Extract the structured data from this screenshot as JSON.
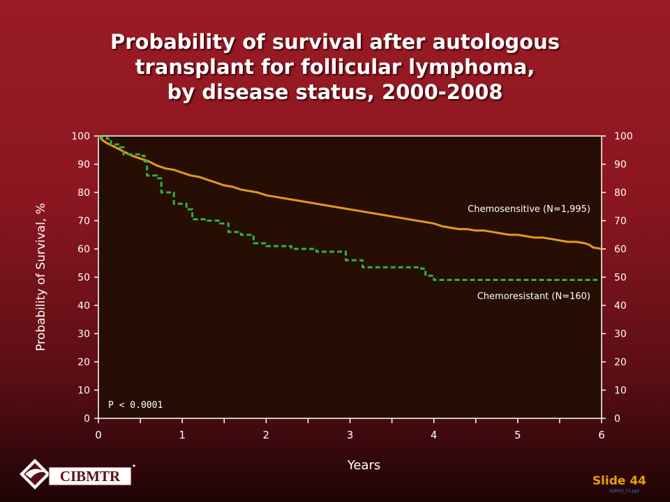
{
  "title": {
    "line1": "Probability of survival after autologous",
    "line2": "transplant for follicular lymphoma,",
    "line3": "by disease status, 2000-2008"
  },
  "colors": {
    "plot_bg": "#260e05",
    "chemosensitive": "#e39a1c",
    "chemoresistant": "#2fb13f",
    "axis": "#ffffff",
    "slide_number": "#e8a000"
  },
  "chart_data": {
    "type": "line",
    "title": "Probability of survival after autologous transplant for follicular lymphoma, by disease status, 2000-2008",
    "xlabel": "Years",
    "ylabel": "Probability of Survival, %",
    "xlim": [
      0,
      6
    ],
    "ylim": [
      0,
      100
    ],
    "x_ticks": [
      "0",
      "1",
      "2",
      "3",
      "4",
      "5",
      "6"
    ],
    "y_ticks": [
      "0",
      "10",
      "20",
      "30",
      "40",
      "50",
      "60",
      "70",
      "80",
      "90",
      "100"
    ],
    "y_ticks_right": true,
    "grid": false,
    "annotation": "P < 0.0001",
    "series": [
      {
        "name": "Chemosensitive (N=1,995)",
        "style": "solid",
        "points": [
          [
            0,
            100
          ],
          [
            0.05,
            98.5
          ],
          [
            0.1,
            97.5
          ],
          [
            0.2,
            96
          ],
          [
            0.3,
            94.5
          ],
          [
            0.4,
            93
          ],
          [
            0.5,
            92
          ],
          [
            0.6,
            91
          ],
          [
            0.7,
            89.5
          ],
          [
            0.8,
            88.5
          ],
          [
            0.9,
            88
          ],
          [
            1.0,
            87
          ],
          [
            1.1,
            86
          ],
          [
            1.2,
            85.5
          ],
          [
            1.3,
            84.5
          ],
          [
            1.4,
            83.5
          ],
          [
            1.5,
            82.5
          ],
          [
            1.6,
            82
          ],
          [
            1.7,
            81
          ],
          [
            1.8,
            80.5
          ],
          [
            1.9,
            80
          ],
          [
            2.0,
            79
          ],
          [
            2.1,
            78.5
          ],
          [
            2.2,
            78
          ],
          [
            2.3,
            77.5
          ],
          [
            2.4,
            77
          ],
          [
            2.5,
            76.5
          ],
          [
            2.6,
            76
          ],
          [
            2.7,
            75.5
          ],
          [
            2.8,
            75
          ],
          [
            2.9,
            74.5
          ],
          [
            3.0,
            74
          ],
          [
            3.1,
            73.5
          ],
          [
            3.2,
            73
          ],
          [
            3.3,
            72.5
          ],
          [
            3.4,
            72
          ],
          [
            3.5,
            71.5
          ],
          [
            3.6,
            71
          ],
          [
            3.7,
            70.5
          ],
          [
            3.8,
            70
          ],
          [
            3.9,
            69.5
          ],
          [
            4.0,
            69
          ],
          [
            4.1,
            68
          ],
          [
            4.2,
            67.5
          ],
          [
            4.3,
            67
          ],
          [
            4.4,
            67
          ],
          [
            4.5,
            66.5
          ],
          [
            4.6,
            66.5
          ],
          [
            4.7,
            66
          ],
          [
            4.8,
            65.5
          ],
          [
            4.9,
            65
          ],
          [
            5.0,
            65
          ],
          [
            5.1,
            64.5
          ],
          [
            5.2,
            64
          ],
          [
            5.3,
            64
          ],
          [
            5.4,
            63.5
          ],
          [
            5.5,
            63
          ],
          [
            5.6,
            62.5
          ],
          [
            5.7,
            62.5
          ],
          [
            5.8,
            62
          ],
          [
            5.85,
            61.5
          ],
          [
            5.9,
            60.5
          ],
          [
            6.0,
            60
          ]
        ]
      },
      {
        "name": "Chemoresistant (N=160)",
        "style": "dashed",
        "points": [
          [
            0,
            99.5
          ],
          [
            0.1,
            99
          ],
          [
            0.15,
            97
          ],
          [
            0.25,
            96
          ],
          [
            0.3,
            93.5
          ],
          [
            0.5,
            93
          ],
          [
            0.55,
            91
          ],
          [
            0.58,
            86
          ],
          [
            0.7,
            85
          ],
          [
            0.75,
            80
          ],
          [
            0.9,
            76
          ],
          [
            1.05,
            74
          ],
          [
            1.12,
            70.5
          ],
          [
            1.3,
            70
          ],
          [
            1.45,
            69
          ],
          [
            1.55,
            66
          ],
          [
            1.7,
            65
          ],
          [
            1.85,
            62
          ],
          [
            2.0,
            61
          ],
          [
            2.3,
            60
          ],
          [
            2.6,
            59
          ],
          [
            2.95,
            56
          ],
          [
            3.15,
            53.5
          ],
          [
            3.85,
            53
          ],
          [
            3.9,
            50.5
          ],
          [
            4.0,
            49
          ],
          [
            5.95,
            49
          ]
        ]
      }
    ]
  },
  "branding": {
    "logo_text": "CIBMTR",
    "slide_number": "Slide 44",
    "file_ref": "SUM10_51.ppt"
  }
}
